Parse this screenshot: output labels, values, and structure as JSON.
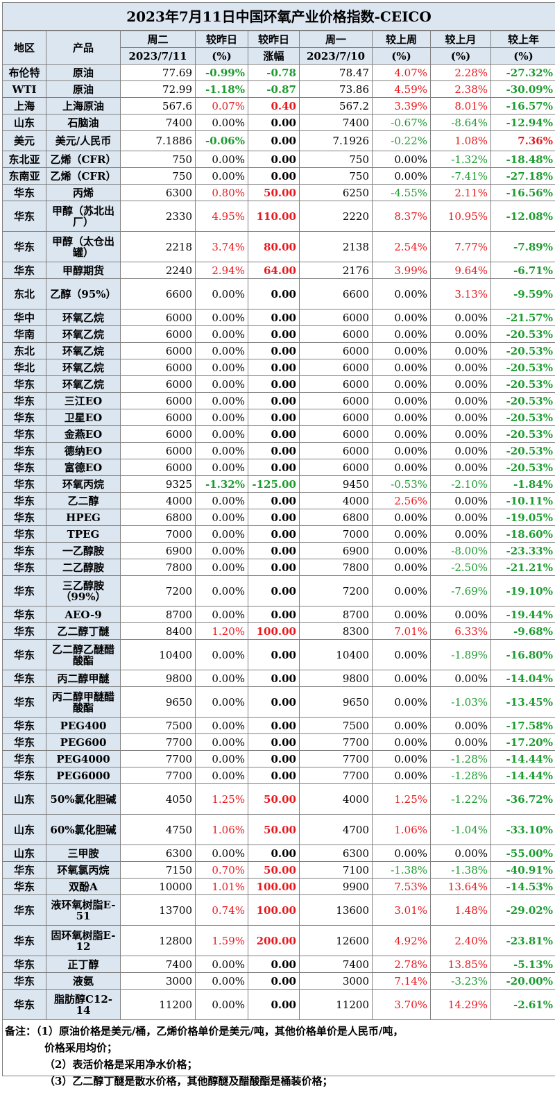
{
  "title": "2023年7月11日中国环氧产业价格指数-CEICO",
  "header": {
    "region": "地区",
    "product": "产品",
    "today_day": "周二",
    "today_date": "2023/7/11",
    "dod_pct_top": "较昨日",
    "dod_pct_bottom": "(%)",
    "dod_chg_top": "较昨日",
    "dod_chg_bottom": "涨幅",
    "prev_day": "周一",
    "prev_date": "2023/7/10",
    "wow_top": "较上周",
    "wow_bottom": "(%)",
    "mom_top": "较上月",
    "mom_bottom": "(%)",
    "yoy_top": "较上年",
    "yoy_bottom": "(%)"
  },
  "colors": {
    "up": "#e8191e",
    "down": "#1b9b2e",
    "header_bg": "#dce6f1"
  },
  "rows": [
    {
      "region": "布伦特",
      "product": "原油",
      "today": "77.69",
      "dod": "-0.99%",
      "chg": "-0.78",
      "prev": "78.47",
      "wow": "4.07%",
      "mom": "2.28%",
      "yoy": "-27.32%",
      "h": 24
    },
    {
      "region": "WTI",
      "product": "原油",
      "today": "72.99",
      "dod": "-1.18%",
      "chg": "-0.87",
      "prev": "73.86",
      "wow": "4.59%",
      "mom": "2.38%",
      "yoy": "-30.09%",
      "h": 24
    },
    {
      "region": "上海",
      "product": "上海原油",
      "today": "567.6",
      "dod": "0.07%",
      "chg": "0.40",
      "prev": "567.2",
      "wow": "3.39%",
      "mom": "8.01%",
      "yoy": "-16.57%",
      "h": 24
    },
    {
      "region": "山东",
      "product": "石脑油",
      "today": "7400",
      "dod": "0.00%",
      "chg": "0.00",
      "prev": "7400",
      "wow": "-0.67%",
      "mom": "-8.64%",
      "yoy": "-12.94%",
      "h": 24
    },
    {
      "region": "美元",
      "product": "美元/人民币",
      "today": "7.1886",
      "dod": "-0.06%",
      "chg": "0.00",
      "prev": "7.1926",
      "wow": "-0.22%",
      "mom": "1.08%",
      "yoy": "7.36%",
      "h": 29
    },
    {
      "region": "东北亚",
      "product": "乙烯（CFR）",
      "today": "750",
      "dod": "0.00%",
      "chg": "0.00",
      "prev": "750",
      "wow": "0.00%",
      "mom": "-1.32%",
      "yoy": "-18.48%",
      "h": 24
    },
    {
      "region": "东南亚",
      "product": "乙烯（CFR）",
      "today": "750",
      "dod": "0.00%",
      "chg": "0.00",
      "prev": "750",
      "wow": "0.00%",
      "mom": "-7.41%",
      "yoy": "-27.18%",
      "h": 24
    },
    {
      "region": "华东",
      "product": "丙烯",
      "today": "6300",
      "dod": "0.80%",
      "chg": "50.00",
      "prev": "6250",
      "wow": "-4.55%",
      "mom": "2.11%",
      "yoy": "-16.56%",
      "h": 24
    },
    {
      "region": "华东",
      "product": "甲醇（苏北出厂）",
      "today": "2330",
      "dod": "4.95%",
      "chg": "110.00",
      "prev": "2220",
      "wow": "8.37%",
      "mom": "10.95%",
      "yoy": "-12.08%",
      "h": 44
    },
    {
      "region": "华东",
      "product": "甲醇（太仓出罐）",
      "today": "2218",
      "dod": "3.74%",
      "chg": "80.00",
      "prev": "2138",
      "wow": "2.54%",
      "mom": "7.77%",
      "yoy": "-7.89%",
      "h": 44
    },
    {
      "region": "华东",
      "product": "甲醇期货",
      "today": "2240",
      "dod": "2.94%",
      "chg": "64.00",
      "prev": "2176",
      "wow": "3.99%",
      "mom": "9.64%",
      "yoy": "-6.71%",
      "h": 24
    },
    {
      "region": "东北",
      "product": "乙醇（95%）",
      "today": "6600",
      "dod": "0.00%",
      "chg": "0.00",
      "prev": "6600",
      "wow": "0.00%",
      "mom": "3.13%",
      "yoy": "-9.59%",
      "h": 44
    },
    {
      "region": "华中",
      "product": "环氧乙烷",
      "today": "6000",
      "dod": "0.00%",
      "chg": "0.00",
      "prev": "6000",
      "wow": "0.00%",
      "mom": "0.00%",
      "yoy": "-21.57%",
      "h": 24
    },
    {
      "region": "华南",
      "product": "环氧乙烷",
      "today": "6000",
      "dod": "0.00%",
      "chg": "0.00",
      "prev": "6000",
      "wow": "0.00%",
      "mom": "0.00%",
      "yoy": "-20.53%",
      "h": 24
    },
    {
      "region": "东北",
      "product": "环氧乙烷",
      "today": "6000",
      "dod": "0.00%",
      "chg": "0.00",
      "prev": "6000",
      "wow": "0.00%",
      "mom": "0.00%",
      "yoy": "-20.53%",
      "h": 24
    },
    {
      "region": "华北",
      "product": "环氧乙烷",
      "today": "6000",
      "dod": "0.00%",
      "chg": "0.00",
      "prev": "6000",
      "wow": "0.00%",
      "mom": "0.00%",
      "yoy": "-20.53%",
      "h": 24
    },
    {
      "region": "华东",
      "product": "环氧乙烷",
      "today": "6000",
      "dod": "0.00%",
      "chg": "0.00",
      "prev": "6000",
      "wow": "0.00%",
      "mom": "0.00%",
      "yoy": "-20.53%",
      "h": 24
    },
    {
      "region": "华东",
      "product": "三江EO",
      "today": "6000",
      "dod": "0.00%",
      "chg": "0.00",
      "prev": "6000",
      "wow": "0.00%",
      "mom": "0.00%",
      "yoy": "-20.53%",
      "h": 24
    },
    {
      "region": "华东",
      "product": "卫星EO",
      "today": "6000",
      "dod": "0.00%",
      "chg": "0.00",
      "prev": "6000",
      "wow": "0.00%",
      "mom": "0.00%",
      "yoy": "-20.53%",
      "h": 24
    },
    {
      "region": "华东",
      "product": "金燕EO",
      "today": "6000",
      "dod": "0.00%",
      "chg": "0.00",
      "prev": "6000",
      "wow": "0.00%",
      "mom": "0.00%",
      "yoy": "-20.53%",
      "h": 24
    },
    {
      "region": "华东",
      "product": "德纳EO",
      "today": "6000",
      "dod": "0.00%",
      "chg": "0.00",
      "prev": "6000",
      "wow": "0.00%",
      "mom": "0.00%",
      "yoy": "-20.53%",
      "h": 24
    },
    {
      "region": "华东",
      "product": "富德EO",
      "today": "6000",
      "dod": "0.00%",
      "chg": "0.00",
      "prev": "6000",
      "wow": "0.00%",
      "mom": "0.00%",
      "yoy": "-20.53%",
      "h": 24
    },
    {
      "region": "华东",
      "product": "环氧丙烷",
      "today": "9325",
      "dod": "-1.32%",
      "chg": "-125.00",
      "prev": "9450",
      "wow": "-0.53%",
      "mom": "-2.10%",
      "yoy": "-1.84%",
      "h": 24
    },
    {
      "region": "华东",
      "product": "乙二醇",
      "today": "4000",
      "dod": "0.00%",
      "chg": "0.00",
      "prev": "4000",
      "wow": "2.56%",
      "mom": "0.00%",
      "yoy": "-10.11%",
      "h": 24
    },
    {
      "region": "华东",
      "product": "HPEG",
      "today": "6800",
      "dod": "0.00%",
      "chg": "0.00",
      "prev": "6800",
      "wow": "0.00%",
      "mom": "0.00%",
      "yoy": "-19.05%",
      "h": 24
    },
    {
      "region": "华东",
      "product": "TPEG",
      "today": "7000",
      "dod": "0.00%",
      "chg": "0.00",
      "prev": "7000",
      "wow": "0.00%",
      "mom": "0.00%",
      "yoy": "-18.60%",
      "h": 24
    },
    {
      "region": "华东",
      "product": "一乙醇胺",
      "today": "6900",
      "dod": "0.00%",
      "chg": "0.00",
      "prev": "6900",
      "wow": "0.00%",
      "mom": "-8.00%",
      "yoy": "-23.33%",
      "h": 24
    },
    {
      "region": "华东",
      "product": "二乙醇胺",
      "today": "7800",
      "dod": "0.00%",
      "chg": "0.00",
      "prev": "7800",
      "wow": "0.00%",
      "mom": "-2.50%",
      "yoy": "-21.21%",
      "h": 24
    },
    {
      "region": "华东",
      "product": "三乙醇胺（99%）",
      "today": "7200",
      "dod": "0.00%",
      "chg": "0.00",
      "prev": "7200",
      "wow": "0.00%",
      "mom": "-7.69%",
      "yoy": "-19.10%",
      "h": 44
    },
    {
      "region": "华东",
      "product": "AEO-9",
      "today": "8700",
      "dod": "0.00%",
      "chg": "0.00",
      "prev": "8700",
      "wow": "0.00%",
      "mom": "0.00%",
      "yoy": "-19.44%",
      "h": 24
    },
    {
      "region": "华东",
      "product": "乙二醇丁醚",
      "today": "8400",
      "dod": "1.20%",
      "chg": "100.00",
      "prev": "8300",
      "wow": "7.01%",
      "mom": "6.33%",
      "yoy": "-9.68%",
      "h": 24
    },
    {
      "region": "华东",
      "product": "乙二醇乙醚醋酸酯",
      "today": "10400",
      "dod": "0.00%",
      "chg": "0.00",
      "prev": "10400",
      "wow": "0.00%",
      "mom": "-1.89%",
      "yoy": "-16.80%",
      "h": 44
    },
    {
      "region": "华东",
      "product": "丙二醇甲醚",
      "today": "9800",
      "dod": "0.00%",
      "chg": "0.00",
      "prev": "9800",
      "wow": "0.00%",
      "mom": "0.00%",
      "yoy": "-14.04%",
      "h": 24
    },
    {
      "region": "华东",
      "product": "丙二醇甲醚醋酸酯",
      "today": "9650",
      "dod": "0.00%",
      "chg": "0.00",
      "prev": "9650",
      "wow": "0.00%",
      "mom": "-1.03%",
      "yoy": "-13.45%",
      "h": 44
    },
    {
      "region": "华东",
      "product": "PEG400",
      "today": "7500",
      "dod": "0.00%",
      "chg": "0.00",
      "prev": "7500",
      "wow": "0.00%",
      "mom": "0.00%",
      "yoy": "-17.58%",
      "h": 24
    },
    {
      "region": "华东",
      "product": "PEG600",
      "today": "7700",
      "dod": "0.00%",
      "chg": "0.00",
      "prev": "7700",
      "wow": "0.00%",
      "mom": "0.00%",
      "yoy": "-17.20%",
      "h": 24
    },
    {
      "region": "华东",
      "product": "PEG4000",
      "today": "7700",
      "dod": "0.00%",
      "chg": "0.00",
      "prev": "7700",
      "wow": "0.00%",
      "mom": "-1.28%",
      "yoy": "-14.44%",
      "h": 24
    },
    {
      "region": "华东",
      "product": "PEG6000",
      "today": "7700",
      "dod": "0.00%",
      "chg": "0.00",
      "prev": "7700",
      "wow": "0.00%",
      "mom": "-1.28%",
      "yoy": "-14.44%",
      "h": 24
    },
    {
      "region": "山东",
      "product": "50%氯化胆碱",
      "today": "4050",
      "dod": "1.25%",
      "chg": "50.00",
      "prev": "4000",
      "wow": "1.25%",
      "mom": "-1.22%",
      "yoy": "-36.72%",
      "h": 44
    },
    {
      "region": "山东",
      "product": "60%氯化胆碱",
      "today": "4750",
      "dod": "1.06%",
      "chg": "50.00",
      "prev": "4700",
      "wow": "1.06%",
      "mom": "-1.04%",
      "yoy": "-33.10%",
      "h": 44
    },
    {
      "region": "山东",
      "product": "三甲胺",
      "today": "6300",
      "dod": "0.00%",
      "chg": "0.00",
      "prev": "6300",
      "wow": "0.00%",
      "mom": "0.00%",
      "yoy": "-55.00%",
      "h": 24
    },
    {
      "region": "华东",
      "product": "环氧氯丙烷",
      "today": "7150",
      "dod": "0.70%",
      "chg": "50.00",
      "prev": "7100",
      "wow": "-1.38%",
      "mom": "-1.38%",
      "yoy": "-40.91%",
      "h": 24
    },
    {
      "region": "华东",
      "product": "双酚A",
      "today": "10000",
      "dod": "1.01%",
      "chg": "100.00",
      "prev": "9900",
      "wow": "7.53%",
      "mom": "13.64%",
      "yoy": "-14.53%",
      "h": 24
    },
    {
      "region": "华东",
      "product": "液环氧树脂E-51",
      "today": "13700",
      "dod": "0.74%",
      "chg": "100.00",
      "prev": "13600",
      "wow": "3.01%",
      "mom": "1.48%",
      "yoy": "-29.02%",
      "h": 44
    },
    {
      "region": "华东",
      "product": "固环氧树脂E-12",
      "today": "12800",
      "dod": "1.59%",
      "chg": "200.00",
      "prev": "12600",
      "wow": "4.92%",
      "mom": "2.40%",
      "yoy": "-23.81%",
      "h": 44
    },
    {
      "region": "华东",
      "product": "正丁醇",
      "today": "7400",
      "dod": "0.00%",
      "chg": "0.00",
      "prev": "7400",
      "wow": "2.78%",
      "mom": "13.85%",
      "yoy": "-5.13%",
      "h": 24
    },
    {
      "region": "华东",
      "product": "液氨",
      "today": "3000",
      "dod": "0.00%",
      "chg": "0.00",
      "prev": "3000",
      "wow": "7.14%",
      "mom": "-3.23%",
      "yoy": "-20.00%",
      "h": 24
    },
    {
      "region": "华东",
      "product": "脂肪醇C12-14",
      "today": "11200",
      "dod": "0.00%",
      "chg": "0.00",
      "prev": "11200",
      "wow": "3.70%",
      "mom": "14.29%",
      "yoy": "-2.61%",
      "h": 44
    }
  ],
  "notes": {
    "line1": "备注：（1）原油价格是美元/桶，乙烯价格单价是美元/吨，其他价格单价是人民币/吨，",
    "line1b": "价格采用均价；",
    "line2": "（2）表活价格是采用净水价格；",
    "line3": "（3）乙二醇丁醚是散水价格，其他醇醚及醋酸酯是桶装价格；"
  }
}
